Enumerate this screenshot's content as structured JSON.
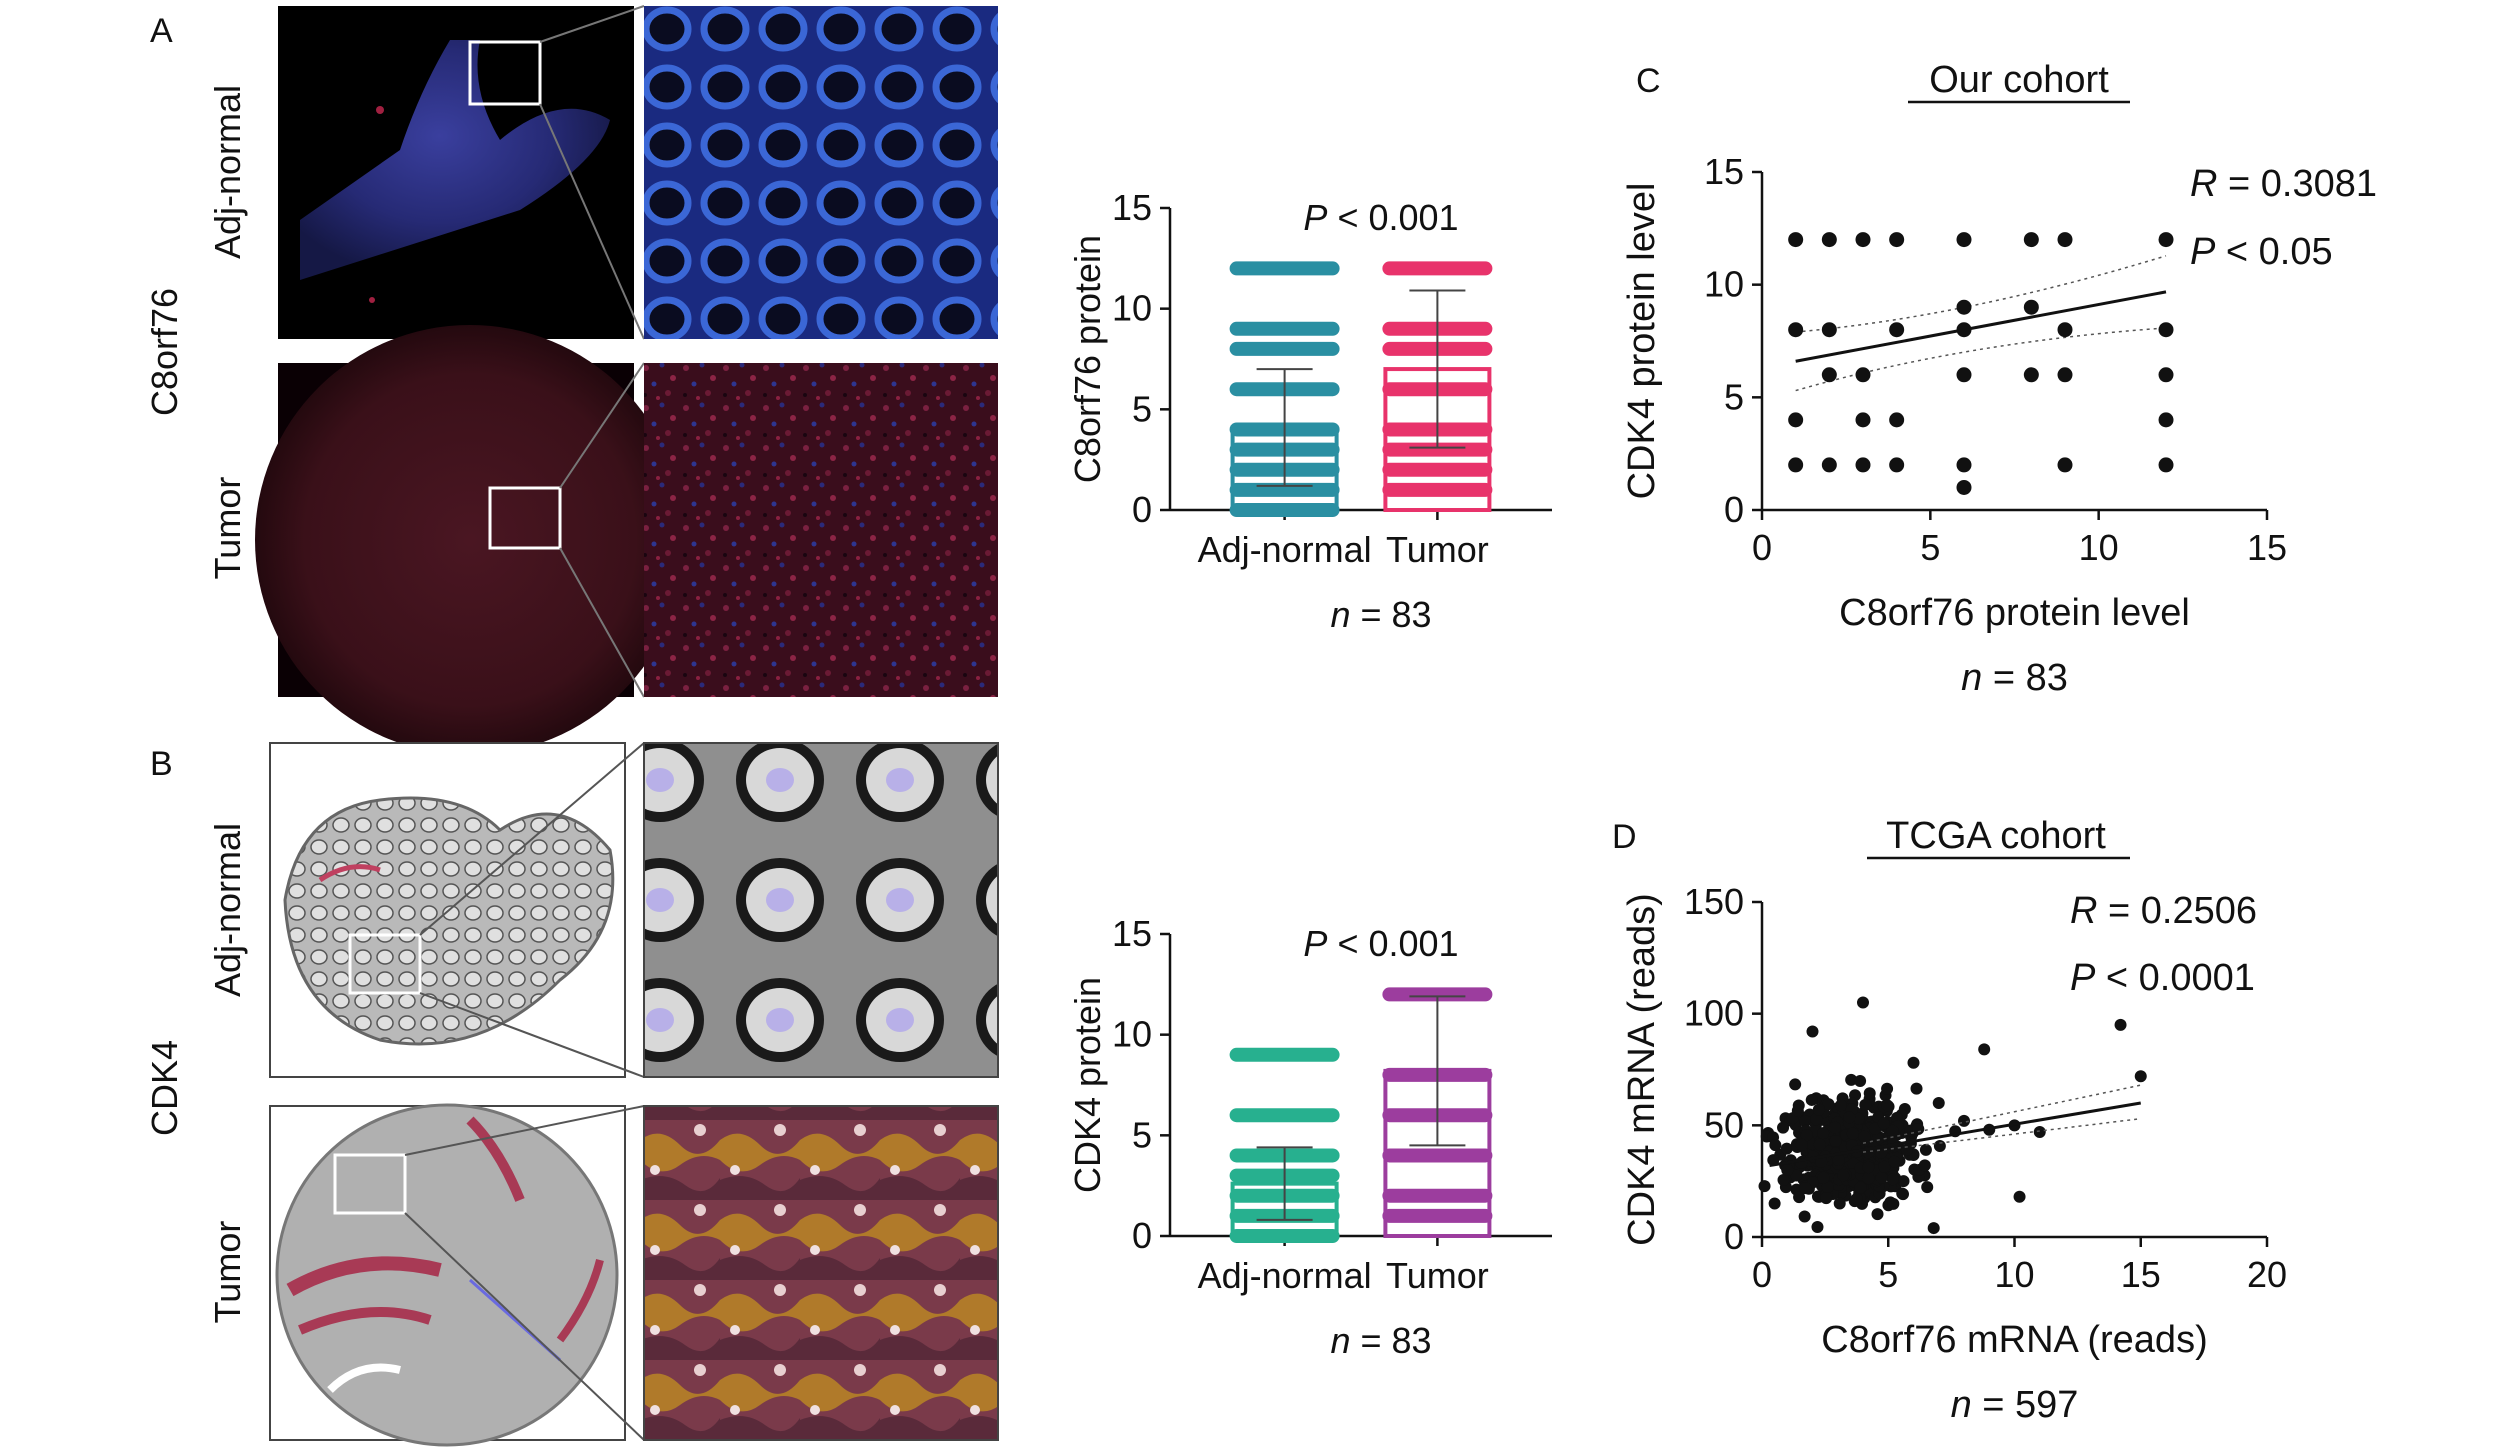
{
  "panels": {
    "A": {
      "letter": "A",
      "protein_label": "C8orf76",
      "row_labels": [
        "Adj-normal",
        "Tumor"
      ]
    },
    "B": {
      "letter": "B",
      "protein_label": "CDK4",
      "row_labels": [
        "Adj-normal",
        "Tumor"
      ]
    },
    "C": {
      "letter": "C",
      "title": "Our cohort"
    },
    "D": {
      "letter": "D",
      "title": "TCGA cohort"
    }
  },
  "chart_data": [
    {
      "id": "barA",
      "type": "bar",
      "categories": [
        "Adj-normal",
        "Tumor"
      ],
      "means": [
        4.1,
        7.0
      ],
      "sd": [
        2.9,
        3.9
      ],
      "colors": [
        "#2a8fa2",
        "#e8336b"
      ],
      "point_levels": [
        [
          0,
          1,
          2,
          3,
          4,
          6,
          8,
          9,
          12
        ],
        [
          1,
          2,
          3,
          4,
          6,
          8,
          9,
          12
        ]
      ],
      "ylabel": "C8orf76 protein",
      "ylim": [
        0,
        15
      ],
      "yticks": [
        "0",
        "5",
        "10",
        "15"
      ],
      "p_prefix": "P",
      "p_rest": " < 0.001",
      "n_prefix": "n",
      "n_rest": " = 83"
    },
    {
      "id": "barB",
      "type": "bar",
      "categories": [
        "Adj-normal",
        "Tumor"
      ],
      "means": [
        2.6,
        8.2
      ],
      "sd": [
        1.8,
        3.7
      ],
      "colors": [
        "#27b08f",
        "#9c3d9e"
      ],
      "point_levels": [
        [
          0,
          1,
          2,
          3,
          4,
          6,
          9
        ],
        [
          1,
          2,
          4,
          6,
          8,
          12
        ]
      ],
      "ylabel": "CDK4 protein",
      "ylim": [
        0,
        15
      ],
      "yticks": [
        "0",
        "5",
        "10",
        "15"
      ],
      "p_prefix": "P",
      "p_rest": " < 0.001",
      "n_prefix": "n",
      "n_rest": " = 83"
    },
    {
      "id": "scatterC",
      "type": "scatter",
      "points": [
        [
          1,
          12
        ],
        [
          2,
          12
        ],
        [
          3,
          12
        ],
        [
          4,
          12
        ],
        [
          6,
          12
        ],
        [
          8,
          12
        ],
        [
          9,
          12
        ],
        [
          12,
          12
        ],
        [
          1,
          8
        ],
        [
          2,
          8
        ],
        [
          4,
          8
        ],
        [
          6,
          8
        ],
        [
          8,
          9
        ],
        [
          9,
          8
        ],
        [
          12,
          8
        ],
        [
          2,
          6
        ],
        [
          3,
          6
        ],
        [
          6,
          9
        ],
        [
          6,
          6
        ],
        [
          8,
          6
        ],
        [
          9,
          6
        ],
        [
          12,
          6
        ],
        [
          1,
          4
        ],
        [
          3,
          4
        ],
        [
          4,
          4
        ],
        [
          12,
          4
        ],
        [
          1,
          2
        ],
        [
          2,
          2
        ],
        [
          3,
          2
        ],
        [
          4,
          2
        ],
        [
          6,
          2
        ],
        [
          9,
          2
        ],
        [
          12,
          2
        ],
        [
          6,
          1
        ]
      ],
      "fit": {
        "slope": 0.28,
        "intercept": 6.32
      },
      "xlim": [
        0,
        15
      ],
      "ylim": [
        0,
        15
      ],
      "xticks": [
        "0",
        "5",
        "10",
        "15"
      ],
      "yticks": [
        "0",
        "5",
        "10",
        "15"
      ],
      "xlabel": "C8orf76 protein level",
      "ylabel": "CDK4 protein level",
      "r_prefix": "R",
      "r_rest": " = 0.3081",
      "p_prefix": "P",
      "p_rest": " < 0.05",
      "n_prefix": "n",
      "n_rest": " = 83"
    },
    {
      "id": "scatterD",
      "type": "scatter",
      "cluster": {
        "center": [
          3.5,
          38
        ],
        "sx": 1.2,
        "sy": 11,
        "count": 560
      },
      "extra_points": [
        [
          14.2,
          95
        ],
        [
          15,
          72
        ],
        [
          4,
          105
        ],
        [
          8.8,
          84
        ],
        [
          10.2,
          18
        ],
        [
          6.8,
          4
        ],
        [
          1,
          30
        ],
        [
          0.5,
          15
        ],
        [
          7,
          60
        ],
        [
          8,
          52
        ],
        [
          9,
          48
        ],
        [
          10,
          50
        ],
        [
          11,
          47
        ],
        [
          6,
          78
        ],
        [
          2,
          92
        ]
      ],
      "fit": {
        "x0": 0.3,
        "y0": 32,
        "x1": 15.0,
        "y1": 60
      },
      "xlim": [
        0,
        20
      ],
      "ylim": [
        0,
        150
      ],
      "xticks": [
        "0",
        "5",
        "10",
        "15",
        "20"
      ],
      "yticks": [
        "0",
        "50",
        "100",
        "150"
      ],
      "xlabel": "C8orf76 mRNA (reads)",
      "ylabel": "CDK4 mRNA (reads)",
      "r_prefix": "R",
      "r_rest": " = 0.2506",
      "p_prefix": "P",
      "p_rest": " < 0.0001",
      "n_prefix": "n",
      "n_rest": " = 597"
    }
  ]
}
